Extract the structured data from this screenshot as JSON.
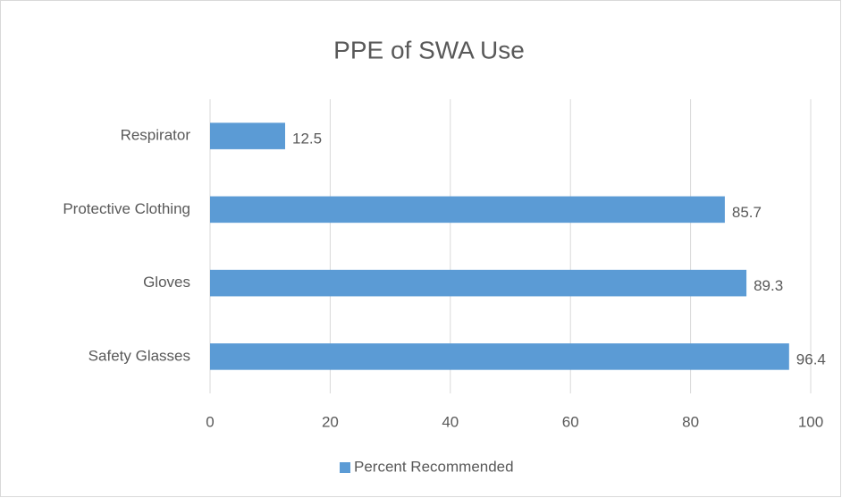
{
  "chart_data": {
    "type": "bar",
    "orientation": "horizontal",
    "title": "PPE of SWA Use",
    "categories": [
      "Respirator",
      "Protective Clothing",
      "Gloves",
      "Safety Glasses"
    ],
    "series": [
      {
        "name": "Percent Recommended",
        "color": "#5b9bd5",
        "values": [
          12.5,
          85.7,
          89.3,
          96.4
        ]
      }
    ],
    "xlim": [
      0,
      100
    ],
    "xticks": [
      0,
      20,
      40,
      60,
      80,
      100
    ],
    "grid": true,
    "legend": "bottom",
    "data_labels": true
  }
}
